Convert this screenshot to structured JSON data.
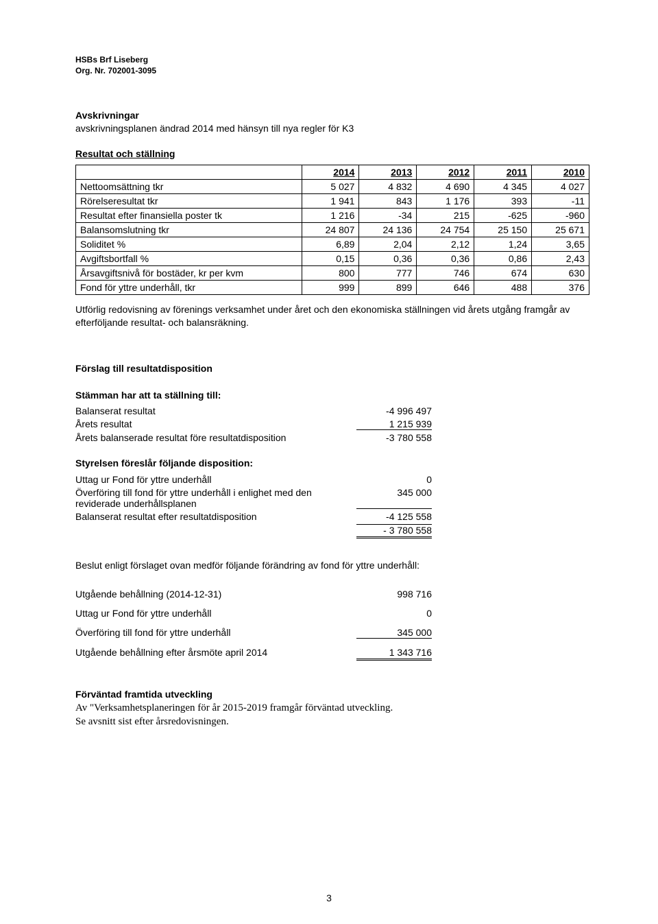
{
  "header": {
    "line1": "HSBs Brf Liseberg",
    "line2": "Org. Nr. 702001-3095"
  },
  "avskrivningar": {
    "title": "Avskrivningar",
    "text": "avskrivningsplanen ändrad 2014 med hänsyn till nya regler för K3"
  },
  "resultat_stallning": {
    "title": "Resultat och ställning",
    "years": [
      "2014",
      "2013",
      "2012",
      "2011",
      "2010"
    ],
    "rows": [
      {
        "label": "Nettoomsättning tkr",
        "vals": [
          "5 027",
          "4 832",
          "4 690",
          "4 345",
          "4 027"
        ]
      },
      {
        "label": "Rörelseresultat tkr",
        "vals": [
          "1 941",
          "843",
          "1 176",
          "393",
          "-11"
        ]
      },
      {
        "label": "Resultat efter finansiella poster tk",
        "vals": [
          "1 216",
          "-34",
          "215",
          "-625",
          "-960"
        ]
      },
      {
        "label": "Balansomslutning tkr",
        "vals": [
          "24 807",
          "24 136",
          "24 754",
          "25 150",
          "25 671"
        ]
      },
      {
        "label": "Soliditet %",
        "vals": [
          "6,89",
          "2,04",
          "2,12",
          "1,24",
          "3,65"
        ]
      },
      {
        "label": "Avgiftsbortfall %",
        "vals": [
          "0,15",
          "0,36",
          "0,36",
          "0,86",
          "2,43"
        ]
      },
      {
        "label": "Årsavgiftsnivå för bostäder, kr per kvm",
        "vals": [
          "800",
          "777",
          "746",
          "674",
          "630"
        ]
      },
      {
        "label": "Fond för yttre underhåll, tkr",
        "vals": [
          "999",
          "899",
          "646",
          "488",
          "376"
        ]
      }
    ],
    "footnote": "Utförlig redovisning av förenings verksamhet under året och den ekonomiska ställningen vid årets utgång framgår av efterföljande resultat- och balansräkning."
  },
  "forslag": {
    "title": "Förslag till resultatdisposition",
    "sub1": "Stämman har att ta ställning till:",
    "rows1": [
      {
        "label": "Balanserat resultat",
        "val": "-4 996 497"
      },
      {
        "label": "Årets resultat",
        "val": "1 215 939"
      },
      {
        "label": "Årets balanserade resultat före resultatdisposition",
        "val": "-3 780 558"
      }
    ],
    "sub2": "Styrelsen föreslår följande disposition:",
    "rows2": [
      {
        "label": "Uttag ur Fond för yttre underhåll",
        "val": "0"
      },
      {
        "label": "Överföring till fond för yttre underhåll i enlighet med den reviderade underhållsplanen",
        "val": "345 000"
      },
      {
        "label": "Balanserat resultat efter resultatdisposition",
        "val": "-4 125 558"
      },
      {
        "label": "",
        "val": "- 3 780 558"
      }
    ],
    "beslut": "Beslut enligt förslaget ovan medför följande förändring av fond för yttre underhåll:",
    "rows3": [
      {
        "label": "Utgående behållning (2014-12-31)",
        "val": "998 716"
      },
      {
        "label": "Uttag ur Fond för yttre underhåll",
        "val": "0"
      },
      {
        "label": "Överföring till fond för yttre underhåll",
        "val": "345 000"
      },
      {
        "label": "Utgående behållning efter årsmöte april 2014",
        "val": "1 343 716"
      }
    ]
  },
  "forvantad": {
    "title": "Förväntad framtida utveckling",
    "line1": "Av \"Verksamhetsplaneringen för år 2015-2019 framgår förväntad utveckling.",
    "line2": "Se avsnitt sist efter årsredovisningen."
  },
  "page_number": "3"
}
